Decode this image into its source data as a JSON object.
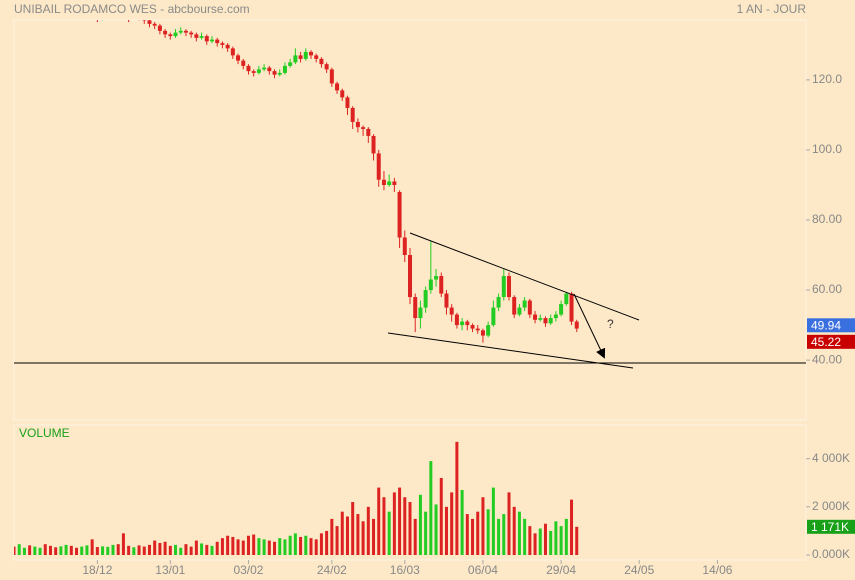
{
  "chart_data": {
    "type": "candlestick",
    "title": "UNIBAIL RODAMCO WES - abcbourse.com",
    "period": "1 AN - JOUR",
    "annotation": "?",
    "xlim": [
      0,
      152
    ],
    "xticks": [
      {
        "value": 16,
        "label": "18/12"
      },
      {
        "value": 30,
        "label": "13/01"
      },
      {
        "value": 45,
        "label": "03/02"
      },
      {
        "value": 61,
        "label": "24/02"
      },
      {
        "value": 75,
        "label": "16/03"
      },
      {
        "value": 90,
        "label": "06/04"
      },
      {
        "value": 105,
        "label": "29/04"
      },
      {
        "value": 120,
        "label": "24/05"
      },
      {
        "value": 135,
        "label": "14/06"
      }
    ],
    "ylim": [
      22.9,
      137.1
    ],
    "yticks": [
      {
        "value": 40,
        "label": "40.00"
      },
      {
        "value": 60,
        "label": "60.00"
      },
      {
        "value": 80,
        "label": "80.00"
      },
      {
        "value": 100,
        "label": "100.0"
      },
      {
        "value": 120,
        "label": "120.0"
      }
    ],
    "up_color": "#22cc22",
    "down_color": "#dd2222",
    "last_prices": [
      {
        "value": 49.94,
        "color": "#3a6fe0"
      },
      {
        "value": 45.22,
        "color": "#c80000"
      }
    ],
    "ohlc": [
      [
        139.5,
        140.5,
        138,
        139
      ],
      [
        139,
        141,
        138.5,
        140
      ],
      [
        140,
        142,
        139,
        141
      ],
      [
        141,
        142,
        138,
        139
      ],
      [
        139,
        141,
        138.5,
        140
      ],
      [
        140,
        143,
        139.5,
        142
      ],
      [
        142,
        142.5,
        140,
        141
      ],
      [
        141,
        141.5,
        139,
        140
      ],
      [
        140,
        140.5,
        138,
        139
      ],
      [
        139,
        142,
        138.5,
        141
      ],
      [
        141,
        143,
        140.5,
        142
      ],
      [
        142,
        142.5,
        139,
        140
      ],
      [
        140,
        140.5,
        138,
        139
      ],
      [
        139,
        141,
        138.5,
        140
      ],
      [
        140,
        142,
        139.5,
        141
      ],
      [
        141,
        141.5,
        138,
        139
      ],
      [
        139,
        139.5,
        136.5,
        138
      ],
      [
        138,
        140,
        137,
        139
      ],
      [
        139,
        141,
        138.5,
        140
      ],
      [
        140,
        142,
        139,
        141
      ],
      [
        141,
        141.5,
        139,
        140
      ],
      [
        140,
        140.5,
        137.5,
        139
      ],
      [
        139,
        139.5,
        136.5,
        138
      ],
      [
        138,
        140,
        137.5,
        139
      ],
      [
        139,
        139.5,
        137,
        138
      ],
      [
        138,
        138.5,
        136,
        137
      ],
      [
        137,
        137.5,
        135,
        136
      ],
      [
        136,
        136.5,
        134.5,
        135.5
      ],
      [
        135.5,
        136,
        133,
        134
      ],
      [
        134,
        134.5,
        132,
        133
      ],
      [
        133,
        133.5,
        131.5,
        132.5
      ],
      [
        132.5,
        134.5,
        132,
        133.5
      ],
      [
        133.5,
        135,
        133,
        134
      ],
      [
        134,
        134.5,
        132.5,
        133.5
      ],
      [
        133.5,
        134,
        132,
        133
      ],
      [
        133,
        133.5,
        131,
        132
      ],
      [
        132,
        133.5,
        131.5,
        132.5
      ],
      [
        132.5,
        133,
        130,
        131
      ],
      [
        131,
        132.5,
        130.5,
        131.5
      ],
      [
        131.5,
        132,
        129.5,
        130.5
      ],
      [
        130.5,
        131,
        129,
        130
      ],
      [
        130,
        130.5,
        128,
        129
      ],
      [
        129,
        129.5,
        126,
        127
      ],
      [
        127,
        127.5,
        124.5,
        125.5
      ],
      [
        125.5,
        126,
        123,
        124
      ],
      [
        124,
        124.5,
        121.5,
        122.5
      ],
      [
        122.5,
        123,
        121,
        122
      ],
      [
        122,
        124,
        121.5,
        123
      ],
      [
        123,
        124.5,
        122.5,
        123.5
      ],
      [
        123.5,
        124,
        121.5,
        122.5
      ],
      [
        122.5,
        123,
        120.5,
        121.5
      ],
      [
        121.5,
        123,
        121,
        122
      ],
      [
        122,
        125,
        121.5,
        124
      ],
      [
        124,
        126,
        123.5,
        125
      ],
      [
        125,
        129,
        124.5,
        127
      ],
      [
        127,
        128,
        125,
        126
      ],
      [
        126,
        129,
        125.5,
        128
      ],
      [
        128,
        128.5,
        126,
        127
      ],
      [
        127,
        127.5,
        125,
        126
      ],
      [
        126,
        126.5,
        123.5,
        124.5
      ],
      [
        124.5,
        125,
        122,
        123
      ],
      [
        123,
        123.5,
        118,
        119
      ],
      [
        119,
        119.5,
        116,
        117
      ],
      [
        117,
        117.5,
        114,
        115
      ],
      [
        115,
        115.5,
        110,
        112
      ],
      [
        112,
        112.5,
        106,
        108
      ],
      [
        108,
        109,
        105,
        106.5
      ],
      [
        106.5,
        107,
        104,
        106
      ],
      [
        106,
        106.5,
        102,
        104
      ],
      [
        104,
        104.5,
        97,
        99
      ],
      [
        99,
        100,
        89.5,
        91.5
      ],
      [
        91.5,
        94,
        88.5,
        90
      ],
      [
        90,
        93,
        89.5,
        91
      ],
      [
        91,
        92,
        88,
        90
      ],
      [
        88,
        88.5,
        72,
        75
      ],
      [
        75,
        77,
        68,
        70
      ],
      [
        70,
        72,
        56,
        58
      ],
      [
        58,
        59,
        48,
        52
      ],
      [
        52,
        57,
        49,
        55
      ],
      [
        55,
        61,
        53.5,
        60
      ],
      [
        60,
        74,
        59,
        63
      ],
      [
        63,
        66,
        61,
        64
      ],
      [
        64,
        65,
        58,
        59
      ],
      [
        59,
        60,
        53,
        55
      ],
      [
        55,
        56,
        51,
        53
      ],
      [
        53,
        53.5,
        49,
        50
      ],
      [
        50,
        52,
        48.5,
        51
      ],
      [
        51,
        51.5,
        48.5,
        50
      ],
      [
        50,
        50.5,
        48,
        49
      ],
      [
        49,
        50,
        47.5,
        48.5
      ],
      [
        48.5,
        49,
        45,
        47
      ],
      [
        47,
        51,
        46.5,
        50
      ],
      [
        50,
        57,
        49.5,
        55
      ],
      [
        55,
        59,
        54,
        58
      ],
      [
        58,
        66,
        57,
        64
      ],
      [
        64,
        65,
        57,
        58
      ],
      [
        58,
        58.5,
        52,
        53
      ],
      [
        53,
        56,
        52.5,
        55
      ],
      [
        55,
        58,
        54,
        57
      ],
      [
        57,
        57.5,
        52,
        53
      ],
      [
        53,
        54,
        50.5,
        51.5
      ],
      [
        51.5,
        53,
        51,
        52
      ],
      [
        52,
        52.5,
        49.5,
        50.5
      ],
      [
        50.5,
        53,
        50,
        52
      ],
      [
        52,
        54,
        51,
        53
      ],
      [
        53,
        57,
        52.5,
        56
      ],
      [
        56,
        59.5,
        55.5,
        59
      ],
      [
        59,
        59.5,
        50,
        51
      ],
      [
        51,
        51.5,
        48,
        49
      ]
    ],
    "volume": {
      "title": "VOLUME",
      "ylim": [
        0,
        5400
      ],
      "yticks": [
        {
          "value": 0,
          "label": "0.000K"
        },
        {
          "value": 2000,
          "label": "2 000K"
        },
        {
          "value": 4000,
          "label": "4 000K"
        }
      ],
      "last": {
        "value": 1171,
        "label": "1 171K"
      },
      "color": "#18a018",
      "values": [
        350,
        450,
        300,
        400,
        350,
        300,
        450,
        380,
        320,
        360,
        420,
        380,
        300,
        350,
        400,
        650,
        330,
        360,
        340,
        420,
        450,
        900,
        380,
        320,
        400,
        350,
        420,
        600,
        500,
        550,
        380,
        420,
        300,
        450,
        350,
        600,
        480,
        420,
        380,
        550,
        700,
        800,
        750,
        650,
        600,
        800,
        850,
        700,
        650,
        600,
        550,
        700,
        650,
        800,
        900,
        750,
        800,
        700,
        650,
        900,
        1000,
        1500,
        1200,
        1800,
        1600,
        2200,
        1700,
        1400,
        2000,
        1500,
        2800,
        2400,
        1800,
        2600,
        2800,
        2400,
        2200,
        1500,
        2500,
        1800,
        3900,
        2100,
        3200,
        2000,
        2600,
        4700,
        2700,
        1700,
        1500,
        1800,
        2400,
        1900,
        2800,
        1500,
        1700,
        2600,
        2000,
        1800,
        1500,
        1200,
        900,
        1100,
        1300,
        1000,
        1400,
        1200,
        1500,
        2300,
        1171
      ]
    }
  }
}
